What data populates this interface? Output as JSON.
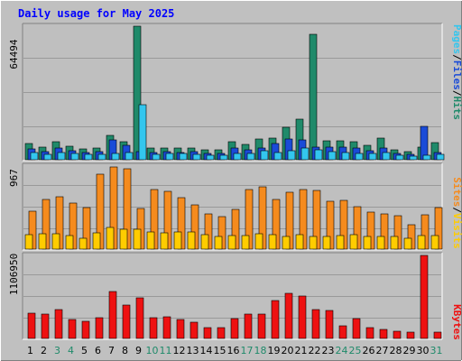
{
  "chart_data": [
    {
      "type": "bar",
      "title": "Daily usage for May 2025",
      "categories": [
        "1",
        "2",
        "3",
        "4",
        "5",
        "6",
        "7",
        "8",
        "9",
        "10",
        "11",
        "12",
        "13",
        "14",
        "15",
        "16",
        "17",
        "18",
        "19",
        "20",
        "21",
        "22",
        "23",
        "24",
        "25",
        "26",
        "27",
        "28",
        "29",
        "30",
        "31"
      ],
      "weekend_days": [
        "3",
        "4",
        "10",
        "11",
        "17",
        "18",
        "24",
        "25",
        "31"
      ],
      "ymax_label": "64494",
      "ylim": [
        0,
        64494
      ],
      "series": [
        {
          "name": "Hits",
          "color": "#1f8a6a",
          "values": [
            7700,
            6200,
            8500,
            6700,
            5100,
            5700,
            11700,
            8600,
            64494,
            5800,
            5800,
            5500,
            5800,
            4800,
            4900,
            8500,
            7300,
            10100,
            10600,
            15800,
            19600,
            60500,
            9200,
            9000,
            8500,
            6800,
            10600,
            4900,
            4000,
            6100,
            8200
          ]
        },
        {
          "name": "Files",
          "color": "#1a4bd8",
          "values": [
            5100,
            4100,
            5700,
            4500,
            3400,
            3800,
            9600,
            6800,
            4100,
            3700,
            3800,
            3700,
            3800,
            3200,
            3100,
            5600,
            4900,
            5700,
            7800,
            10100,
            9700,
            6300,
            6200,
            6000,
            5700,
            4300,
            5600,
            3200,
            2600,
            16000,
            3500
          ]
        },
        {
          "name": "Pages",
          "color": "#33c6ee",
          "values": [
            3300,
            2800,
            3500,
            3000,
            2500,
            2700,
            3200,
            3600,
            26400,
            2800,
            3000,
            3000,
            2800,
            2300,
            2300,
            3100,
            3000,
            4200,
            3700,
            4500,
            5800,
            4900,
            3900,
            3600,
            3100,
            2900,
            3400,
            2200,
            1800,
            2200,
            2800
          ]
        }
      ],
      "legend": [
        "Pages",
        "/",
        "Files",
        "/",
        "Hits"
      ]
    },
    {
      "type": "bar",
      "ymax_label": "967",
      "ylim": [
        0,
        967
      ],
      "series": [
        {
          "name": "Visits",
          "color": "#ffcc00",
          "values": [
            170,
            180,
            180,
            160,
            130,
            190,
            250,
            230,
            230,
            200,
            190,
            200,
            200,
            170,
            150,
            160,
            160,
            180,
            170,
            150,
            170,
            150,
            150,
            160,
            170,
            150,
            150,
            150,
            130,
            160,
            160
          ]
        },
        {
          "name": "Sites",
          "color": "#f58b1e",
          "values": [
            440,
            580,
            610,
            540,
            480,
            870,
            960,
            940,
            470,
            690,
            670,
            600,
            520,
            410,
            380,
            460,
            690,
            730,
            580,
            660,
            690,
            680,
            560,
            570,
            490,
            430,
            410,
            390,
            280,
            400,
            480
          ]
        }
      ],
      "legend": [
        "Sites",
        "/",
        "Visits"
      ]
    },
    {
      "type": "bar",
      "ymax_label": "1106950",
      "ylim": [
        0,
        1106950
      ],
      "series": [
        {
          "name": "KBytes",
          "color": "#ee1111",
          "values": [
            340000,
            320000,
            390000,
            250000,
            230000,
            280000,
            630000,
            440000,
            540000,
            280000,
            290000,
            250000,
            220000,
            150000,
            140000,
            270000,
            330000,
            330000,
            510000,
            600000,
            560000,
            380000,
            370000,
            170000,
            270000,
            140000,
            120000,
            100000,
            80000,
            1106950,
            80000
          ]
        }
      ],
      "legend": [
        "KBytes"
      ]
    }
  ],
  "colors": {
    "page_bg": "#c0c0c0",
    "panel_bg": "#bfbfbf",
    "grid": "#999999",
    "title": "#0000ff",
    "weekday_label": "#000000",
    "weekend_label": "#1f8a6a",
    "slash": "#000000"
  }
}
